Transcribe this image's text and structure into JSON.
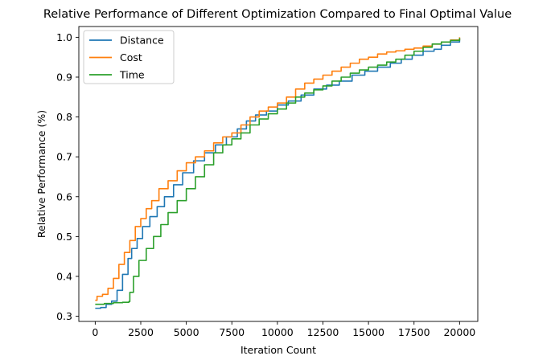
{
  "chart_data": {
    "type": "line",
    "title": "Relative Performance of Different Optimization Compared to Final Optimal Value",
    "xlabel": "Iteration Count",
    "ylabel": "Relative Performance (%)",
    "xlim": [
      -900,
      21000
    ],
    "ylim": [
      0.287,
      1.027
    ],
    "xticks": [
      0,
      2500,
      5000,
      7500,
      10000,
      12500,
      15000,
      17500,
      20000
    ],
    "yticks": [
      0.3,
      0.4,
      0.5,
      0.6,
      0.7,
      0.8,
      0.9,
      1.0
    ],
    "grid": false,
    "legend": "top-left",
    "series": [
      {
        "name": "Distance",
        "color": "#1f77b4",
        "points": [
          [
            0,
            0.32
          ],
          [
            300,
            0.322
          ],
          [
            600,
            0.33
          ],
          [
            900,
            0.338
          ],
          [
            1200,
            0.365
          ],
          [
            1500,
            0.405
          ],
          [
            1800,
            0.445
          ],
          [
            2000,
            0.47
          ],
          [
            2300,
            0.495
          ],
          [
            2600,
            0.525
          ],
          [
            3000,
            0.55
          ],
          [
            3400,
            0.575
          ],
          [
            3800,
            0.6
          ],
          [
            4300,
            0.63
          ],
          [
            4800,
            0.66
          ],
          [
            5400,
            0.69
          ],
          [
            6000,
            0.71
          ],
          [
            6600,
            0.73
          ],
          [
            7200,
            0.75
          ],
          [
            7800,
            0.77
          ],
          [
            8300,
            0.79
          ],
          [
            8800,
            0.805
          ],
          [
            9400,
            0.815
          ],
          [
            10000,
            0.83
          ],
          [
            10600,
            0.84
          ],
          [
            11300,
            0.855
          ],
          [
            12000,
            0.87
          ],
          [
            12700,
            0.88
          ],
          [
            13400,
            0.89
          ],
          [
            14100,
            0.905
          ],
          [
            14800,
            0.915
          ],
          [
            15500,
            0.925
          ],
          [
            16200,
            0.935
          ],
          [
            16800,
            0.945
          ],
          [
            17400,
            0.955
          ],
          [
            18000,
            0.965
          ],
          [
            18600,
            0.97
          ],
          [
            19000,
            0.98
          ],
          [
            19500,
            0.988
          ],
          [
            20000,
            0.998
          ]
        ]
      },
      {
        "name": "Cost",
        "color": "#ff7f0e",
        "points": [
          [
            0,
            0.34
          ],
          [
            100,
            0.35
          ],
          [
            400,
            0.355
          ],
          [
            700,
            0.37
          ],
          [
            1000,
            0.395
          ],
          [
            1300,
            0.43
          ],
          [
            1600,
            0.46
          ],
          [
            1900,
            0.49
          ],
          [
            2200,
            0.525
          ],
          [
            2500,
            0.545
          ],
          [
            2800,
            0.57
          ],
          [
            3100,
            0.59
          ],
          [
            3500,
            0.62
          ],
          [
            4000,
            0.64
          ],
          [
            4500,
            0.665
          ],
          [
            5000,
            0.685
          ],
          [
            5500,
            0.7
          ],
          [
            6000,
            0.715
          ],
          [
            6500,
            0.735
          ],
          [
            7000,
            0.75
          ],
          [
            7500,
            0.76
          ],
          [
            8000,
            0.78
          ],
          [
            8500,
            0.8
          ],
          [
            9000,
            0.815
          ],
          [
            9500,
            0.825
          ],
          [
            10000,
            0.835
          ],
          [
            10500,
            0.85
          ],
          [
            11000,
            0.87
          ],
          [
            11500,
            0.885
          ],
          [
            12000,
            0.895
          ],
          [
            12500,
            0.905
          ],
          [
            13000,
            0.915
          ],
          [
            13500,
            0.925
          ],
          [
            14000,
            0.935
          ],
          [
            14500,
            0.945
          ],
          [
            15000,
            0.95
          ],
          [
            15500,
            0.958
          ],
          [
            16000,
            0.963
          ],
          [
            16500,
            0.966
          ],
          [
            17000,
            0.97
          ],
          [
            17500,
            0.973
          ],
          [
            18000,
            0.978
          ],
          [
            18500,
            0.983
          ],
          [
            19000,
            0.988
          ],
          [
            19500,
            0.993
          ],
          [
            20000,
            1.0
          ]
        ]
      },
      {
        "name": "Time",
        "color": "#2ca02c",
        "points": [
          [
            0,
            0.33
          ],
          [
            500,
            0.332
          ],
          [
            1000,
            0.334
          ],
          [
            1500,
            0.335
          ],
          [
            1850,
            0.337
          ],
          [
            1900,
            0.36
          ],
          [
            2100,
            0.4
          ],
          [
            2400,
            0.44
          ],
          [
            2800,
            0.47
          ],
          [
            3200,
            0.5
          ],
          [
            3600,
            0.53
          ],
          [
            4000,
            0.56
          ],
          [
            4500,
            0.59
          ],
          [
            5000,
            0.62
          ],
          [
            5500,
            0.65
          ],
          [
            6000,
            0.68
          ],
          [
            6500,
            0.71
          ],
          [
            7000,
            0.73
          ],
          [
            7500,
            0.745
          ],
          [
            8000,
            0.76
          ],
          [
            8500,
            0.78
          ],
          [
            9000,
            0.795
          ],
          [
            9500,
            0.808
          ],
          [
            10000,
            0.82
          ],
          [
            10500,
            0.835
          ],
          [
            11000,
            0.85
          ],
          [
            11500,
            0.86
          ],
          [
            12000,
            0.868
          ],
          [
            12500,
            0.878
          ],
          [
            13000,
            0.89
          ],
          [
            13500,
            0.9
          ],
          [
            14000,
            0.91
          ],
          [
            14500,
            0.918
          ],
          [
            15000,
            0.925
          ],
          [
            15500,
            0.93
          ],
          [
            16000,
            0.938
          ],
          [
            16500,
            0.945
          ],
          [
            17000,
            0.955
          ],
          [
            17500,
            0.965
          ],
          [
            18000,
            0.975
          ],
          [
            18500,
            0.983
          ],
          [
            19000,
            0.988
          ],
          [
            19500,
            0.992
          ],
          [
            20000,
            0.998
          ]
        ]
      }
    ]
  }
}
